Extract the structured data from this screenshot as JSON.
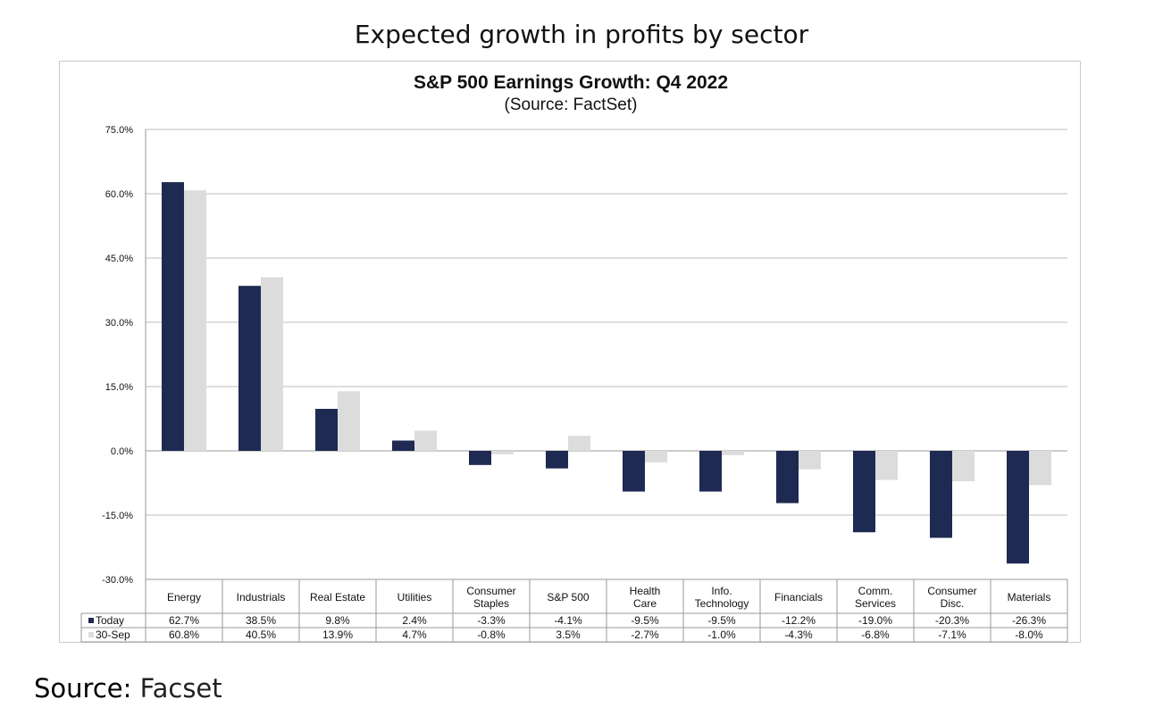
{
  "page_title": "Expected growth in profits by sector",
  "source": {
    "label": "Source:",
    "value": "Facset"
  },
  "chart_data": {
    "type": "bar",
    "title": "S&P 500 Earnings Growth: Q4 2022",
    "subtitle": "(Source: FactSet)",
    "xlabel": "",
    "ylabel": "",
    "ylim": [
      -30,
      75
    ],
    "yticks": [
      "75.0%",
      "60.0%",
      "45.0%",
      "30.0%",
      "15.0%",
      "0.0%",
      "-15.0%",
      "-30.0%"
    ],
    "ytick_values": [
      75,
      60,
      45,
      30,
      15,
      0,
      -15,
      -30
    ],
    "grid": true,
    "legend": "table-rows",
    "categories": [
      [
        "Energy"
      ],
      [
        "Industrials"
      ],
      [
        "Real Estate"
      ],
      [
        "Utilities"
      ],
      [
        "Consumer",
        "Staples"
      ],
      [
        "S&P 500"
      ],
      [
        "Health",
        "Care"
      ],
      [
        "Info.",
        "Technology"
      ],
      [
        "Financials"
      ],
      [
        "Comm.",
        "Services"
      ],
      [
        "Consumer",
        "Disc."
      ],
      [
        "Materials"
      ]
    ],
    "series": [
      {
        "name": "Today",
        "color": "#1f2a52",
        "values": [
          62.7,
          38.5,
          9.8,
          2.4,
          -3.3,
          -4.1,
          -9.5,
          -9.5,
          -12.2,
          -19.0,
          -20.3,
          -26.3
        ],
        "labels": [
          "62.7%",
          "38.5%",
          "9.8%",
          "2.4%",
          "-3.3%",
          "-4.1%",
          "-9.5%",
          "-9.5%",
          "-12.2%",
          "-19.0%",
          "-20.3%",
          "-26.3%"
        ]
      },
      {
        "name": "30-Sep",
        "color": "#dcdcdc",
        "values": [
          60.8,
          40.5,
          13.9,
          4.7,
          -0.8,
          3.5,
          -2.7,
          -1.0,
          -4.3,
          -6.8,
          -7.1,
          -8.0
        ],
        "labels": [
          "60.8%",
          "40.5%",
          "13.9%",
          "4.7%",
          "-0.8%",
          "3.5%",
          "-2.7%",
          "-1.0%",
          "-4.3%",
          "-6.8%",
          "-7.1%",
          "-8.0%"
        ]
      }
    ]
  }
}
